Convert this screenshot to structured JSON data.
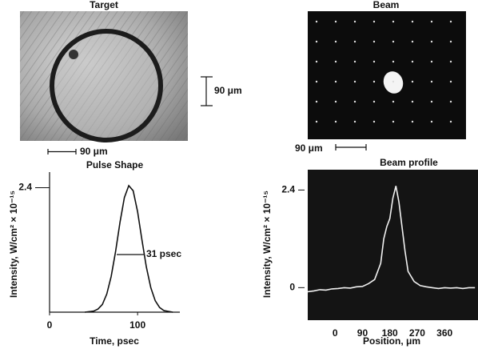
{
  "figure": {
    "target_title": "Target",
    "target_scale_vertical": "90 μm",
    "target_scale_horizontal": "90 μm",
    "beam_title": "Beam",
    "beam_scale": "90 μm"
  },
  "chart_data": [
    {
      "type": "line",
      "title": "Pulse Shape",
      "x_label": "Time, psec",
      "y_label": "Intensity, W/cm² × 10⁻¹⁵",
      "annotation": "31 psec",
      "x": [
        40,
        50,
        55,
        60,
        65,
        70,
        75,
        80,
        85,
        90,
        95,
        100,
        105,
        110,
        115,
        120,
        125,
        130,
        140
      ],
      "values": [
        0,
        0.02,
        0.06,
        0.15,
        0.35,
        0.69,
        1.17,
        1.73,
        2.21,
        2.44,
        2.34,
        1.94,
        1.39,
        0.87,
        0.47,
        0.22,
        0.09,
        0.03,
        0
      ],
      "color": "#111111",
      "xlim": [
        0,
        148
      ],
      "ylim": [
        0,
        2.7
      ],
      "xticks": [
        0,
        100
      ],
      "yticks": [
        2.4
      ]
    },
    {
      "type": "line",
      "title": "Beam profile",
      "x_label": "Position, μm",
      "y_label": "Intensity, W/cm² × 10⁻¹⁵",
      "x": [
        -90,
        -70,
        -50,
        -30,
        -10,
        10,
        30,
        50,
        70,
        90,
        110,
        130,
        150,
        160,
        170,
        180,
        190,
        200,
        210,
        220,
        230,
        240,
        260,
        280,
        300,
        320,
        340,
        360,
        380,
        400,
        420,
        440,
        460
      ],
      "values": [
        -0.1,
        -0.08,
        -0.05,
        -0.06,
        -0.03,
        -0.02,
        0,
        -0.01,
        0.02,
        0.03,
        0.1,
        0.2,
        0.6,
        1.2,
        1.5,
        1.7,
        2.2,
        2.5,
        2.1,
        1.5,
        0.9,
        0.4,
        0.15,
        0.05,
        0.02,
        0,
        -0.02,
        0,
        -0.01,
        0,
        -0.02,
        0,
        0
      ],
      "color": "#f0f0f0",
      "background": "#141414",
      "xlim": [
        -90,
        470
      ],
      "ylim": [
        -0.8,
        2.9
      ],
      "xticks": [
        0,
        90,
        180,
        270,
        360
      ],
      "yticks": [
        0,
        2.4
      ]
    }
  ]
}
